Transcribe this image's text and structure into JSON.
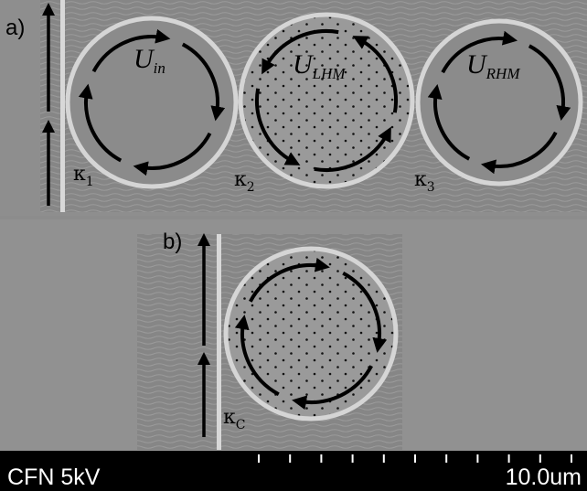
{
  "panel_a": {
    "label": "a)",
    "modes": [
      {
        "main": "U",
        "sub": "in"
      },
      {
        "main": "U",
        "sub": "LHM"
      },
      {
        "main": "U",
        "sub": "RHM"
      }
    ],
    "couplings": [
      {
        "main": "κ",
        "sub": "1"
      },
      {
        "main": "κ",
        "sub": "2"
      },
      {
        "main": "κ",
        "sub": "3"
      }
    ]
  },
  "panel_b": {
    "label": "b)",
    "coupling": {
      "main": "κ",
      "sub": "C"
    }
  },
  "scale_bar": {
    "info": "CFN 5kV",
    "length": "10.0um"
  }
}
